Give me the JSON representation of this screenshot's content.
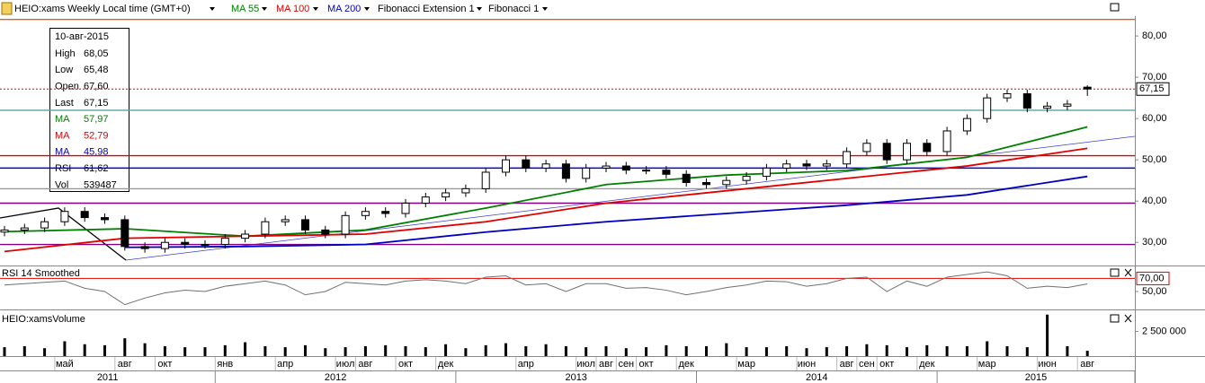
{
  "toolbar": {
    "symbol": "HEIO:xams Weekly Local time (GMT+0)",
    "tools": [
      "Fibonacci Extension 1",
      "Fibonacci 1"
    ]
  },
  "info_box": {
    "date": "10-авг-2015",
    "rows": [
      {
        "label": "High",
        "value": "68,05",
        "color": "#000000"
      },
      {
        "label": "Low",
        "value": "65,48",
        "color": "#000000"
      },
      {
        "label": "Open",
        "value": "67,60",
        "color": "#000000"
      },
      {
        "label": "Last",
        "value": "67,15",
        "color": "#000000"
      },
      {
        "label": "MA",
        "value": "57,97",
        "color": "#008000"
      },
      {
        "label": "MA",
        "value": "52,79",
        "color": "#e00000"
      },
      {
        "label": "MA",
        "value": "45,98",
        "color": "#0000c0"
      },
      {
        "label": "RSI",
        "value": "61,62",
        "color": "#000000"
      },
      {
        "label": "Vol",
        "value": "539487",
        "color": "#000000"
      }
    ]
  },
  "chart_data": [
    {
      "type": "candlestick",
      "x": [
        "2011-02",
        "2011-03",
        "2011-04",
        "2011-05",
        "2011-06",
        "2011-07",
        "2011-08",
        "2011-09",
        "2011-10",
        "2011-11",
        "2011-12",
        "2012-01",
        "2012-02",
        "2012-03",
        "2012-04",
        "2012-05",
        "2012-06",
        "2012-07",
        "2012-08",
        "2012-09",
        "2012-10",
        "2012-11",
        "2012-12",
        "2013-01",
        "2013-02",
        "2013-03",
        "2013-04",
        "2013-05",
        "2013-06",
        "2013-07",
        "2013-08",
        "2013-09",
        "2013-10",
        "2013-11",
        "2013-12",
        "2014-01",
        "2014-02",
        "2014-03",
        "2014-04",
        "2014-05",
        "2014-06",
        "2014-07",
        "2014-08",
        "2014-09",
        "2014-10",
        "2014-11",
        "2014-12",
        "2015-01",
        "2015-02",
        "2015-03",
        "2015-04",
        "2015-05",
        "2015-06",
        "2015-07",
        "2015-08"
      ],
      "open": [
        32.5,
        33,
        33.5,
        35,
        37.5,
        36,
        35.5,
        29,
        28.5,
        30,
        29.5,
        29.5,
        31,
        32,
        35,
        35.5,
        33,
        32,
        36.5,
        37.5,
        37,
        39.5,
        41,
        42,
        43,
        47,
        50,
        48,
        49,
        45.5,
        48,
        48.5,
        47.5,
        47.5,
        46.5,
        44.5,
        44,
        45,
        46,
        48,
        49,
        48.5,
        49,
        52,
        54,
        50,
        54,
        52,
        57,
        60,
        65,
        66,
        62.5,
        63,
        67.6
      ],
      "high": [
        34,
        34.5,
        36,
        38.5,
        38.5,
        37,
        36.5,
        30,
        31,
        31,
        30.5,
        32,
        33,
        36,
        36.5,
        36.5,
        34,
        37.5,
        38.5,
        38.5,
        40.5,
        42,
        43,
        44,
        48,
        51,
        51,
        50,
        50,
        49,
        49.5,
        49.5,
        48.5,
        48.5,
        47.5,
        45.5,
        46,
        47,
        49,
        50,
        50,
        50,
        53,
        55,
        55,
        55,
        55,
        58,
        61,
        66,
        67,
        67,
        64,
        64.5,
        68.05
      ],
      "low": [
        31.5,
        32,
        32.5,
        34,
        35,
        34.5,
        28,
        27.5,
        27.5,
        28.5,
        28.5,
        28.5,
        30,
        31,
        34,
        32,
        31,
        31,
        35.5,
        36,
        36,
        38.5,
        40,
        41,
        42,
        46,
        47,
        47,
        44.5,
        44.5,
        47,
        46.5,
        46.5,
        45.5,
        43.5,
        43,
        43,
        44,
        45,
        47,
        47.5,
        47.5,
        48,
        51,
        49,
        49,
        51,
        51,
        56,
        59,
        64,
        61.5,
        61.5,
        62,
        65.48
      ],
      "close": [
        33,
        33.5,
        35,
        37.5,
        36,
        35.5,
        29,
        28.5,
        30,
        29.5,
        29.5,
        31,
        32,
        35,
        35.5,
        33,
        32,
        36.5,
        37.5,
        37,
        39.5,
        41,
        42,
        43,
        47,
        50,
        48,
        49,
        45.5,
        48,
        48.5,
        47.5,
        47.5,
        46.5,
        44.5,
        44,
        45,
        46,
        48,
        49,
        48.5,
        49,
        52,
        54,
        50,
        54,
        52,
        57,
        60,
        65,
        66,
        62.5,
        63,
        63.5,
        67.15
      ],
      "series": [
        {
          "name": "MA 55",
          "color": "#008000",
          "x": [
            "2011-02",
            "2011-08",
            "2012-02",
            "2012-08",
            "2013-02",
            "2013-08",
            "2014-02",
            "2014-08",
            "2015-02",
            "2015-08"
          ],
          "values": [
            32.6,
            33.3,
            31.5,
            33,
            38.3,
            44,
            46.3,
            47.4,
            50.6,
            57.97
          ]
        },
        {
          "name": "MA 100",
          "color": "#e00000",
          "x": [
            "2011-02",
            "2011-08",
            "2012-02",
            "2012-08",
            "2013-02",
            "2013-08",
            "2014-02",
            "2014-08",
            "2015-02",
            "2015-08"
          ],
          "values": [
            27.8,
            31,
            31.5,
            32,
            35,
            39.5,
            42.5,
            45.5,
            48.5,
            52.79
          ]
        },
        {
          "name": "MA 200",
          "color": "#0000c0",
          "x": [
            "2011-02",
            "2011-08",
            "2012-02",
            "2012-08",
            "2013-02",
            "2013-08",
            "2014-02",
            "2014-08",
            "2015-02",
            "2015-08"
          ],
          "values": [
            null,
            28.8,
            29,
            29.5,
            32.5,
            35,
            37,
            39,
            41.5,
            45.98
          ]
        }
      ],
      "levels": [
        {
          "value": 84,
          "color": "#e06020"
        },
        {
          "value": 62,
          "color": "#5f9ea0"
        },
        {
          "value": 51,
          "color": "#e00000"
        },
        {
          "value": 48,
          "color": "#0000e0"
        },
        {
          "value": 43,
          "color": "#999999"
        },
        {
          "value": 39.5,
          "color": "#800080"
        },
        {
          "value": 29.5,
          "color": "#800080"
        }
      ],
      "last": {
        "value": 67.15,
        "label": "67,15"
      },
      "ylim": [
        24.4,
        84.8
      ],
      "yticks": [
        {
          "value": 30,
          "label": "30,00"
        },
        {
          "value": 40,
          "label": "40,00"
        },
        {
          "value": 50,
          "label": "50,00"
        },
        {
          "value": 60,
          "label": "60,00"
        },
        {
          "value": 70,
          "label": "70,00"
        },
        {
          "value": 80,
          "label": "80,00"
        }
      ]
    },
    {
      "type": "line",
      "title": "RSI 14 Smoothed",
      "color": "#707070",
      "x": [
        "2011-02",
        "2011-03",
        "2011-04",
        "2011-05",
        "2011-06",
        "2011-07",
        "2011-08",
        "2011-09",
        "2011-10",
        "2011-11",
        "2011-12",
        "2012-01",
        "2012-02",
        "2012-03",
        "2012-04",
        "2012-05",
        "2012-06",
        "2012-07",
        "2012-08",
        "2012-09",
        "2012-10",
        "2012-11",
        "2012-12",
        "2013-01",
        "2013-02",
        "2013-03",
        "2013-04",
        "2013-05",
        "2013-06",
        "2013-07",
        "2013-08",
        "2013-09",
        "2013-10",
        "2013-11",
        "2013-12",
        "2014-01",
        "2014-02",
        "2014-03",
        "2014-04",
        "2014-05",
        "2014-06",
        "2014-07",
        "2014-08",
        "2014-09",
        "2014-10",
        "2014-11",
        "2014-12",
        "2015-01",
        "2015-02",
        "2015-03",
        "2015-04",
        "2015-05",
        "2015-06",
        "2015-07",
        "2015-08"
      ],
      "values": [
        60,
        62,
        64,
        66,
        55,
        50,
        30,
        40,
        48,
        52,
        50,
        58,
        62,
        66,
        60,
        45,
        50,
        64,
        62,
        60,
        66,
        68,
        66,
        62,
        72,
        74,
        60,
        62,
        50,
        62,
        62,
        55,
        56,
        52,
        45,
        50,
        56,
        60,
        66,
        65,
        58,
        62,
        70,
        72,
        50,
        66,
        58,
        72,
        76,
        80,
        74,
        55,
        58,
        56,
        61.62
      ],
      "level": {
        "value": 70,
        "color": "#e00000",
        "label": "70,00"
      },
      "ylim": [
        24,
        87
      ],
      "yticks": [
        {
          "value": 50,
          "label": "50,00"
        }
      ]
    },
    {
      "type": "bar",
      "title": "HEIO:xamsVolume",
      "color": "#000000",
      "x": [
        "2011-02",
        "2011-03",
        "2011-04",
        "2011-05",
        "2011-06",
        "2011-07",
        "2011-08",
        "2011-09",
        "2011-10",
        "2011-11",
        "2011-12",
        "2012-01",
        "2012-02",
        "2012-03",
        "2012-04",
        "2012-05",
        "2012-06",
        "2012-07",
        "2012-08",
        "2012-09",
        "2012-10",
        "2012-11",
        "2012-12",
        "2013-01",
        "2013-02",
        "2013-03",
        "2013-04",
        "2013-05",
        "2013-06",
        "2013-07",
        "2013-08",
        "2013-09",
        "2013-10",
        "2013-11",
        "2013-12",
        "2014-01",
        "2014-02",
        "2014-03",
        "2014-04",
        "2014-05",
        "2014-06",
        "2014-07",
        "2014-08",
        "2014-09",
        "2014-10",
        "2014-11",
        "2014-12",
        "2015-01",
        "2015-02",
        "2015-03",
        "2015-04",
        "2015-05",
        "2015-06",
        "2015-07",
        "2015-08"
      ],
      "values": [
        900000,
        1000000,
        800000,
        1500000,
        1200000,
        1100000,
        1800000,
        1300000,
        1000000,
        900000,
        900000,
        1100000,
        1400000,
        1000000,
        900000,
        1100000,
        800000,
        900000,
        1000000,
        1100000,
        1000000,
        900000,
        1200000,
        800000,
        1100000,
        1300000,
        1000000,
        1200000,
        1000000,
        900000,
        1000000,
        800000,
        900000,
        1100000,
        1000000,
        1000000,
        1300000,
        900000,
        900000,
        1000000,
        800000,
        900000,
        1000000,
        1200000,
        1100000,
        900000,
        1100000,
        1000000,
        1000000,
        1500000,
        1000000,
        900000,
        4200000,
        1000000,
        539487
      ],
      "ylim": [
        0,
        4540000
      ],
      "yticks": [
        {
          "value": 2500000,
          "label": "2 500 000"
        }
      ]
    }
  ],
  "time_axis": {
    "months": [
      {
        "date": "2011-05",
        "label": "май"
      },
      {
        "date": "2011-08",
        "label": "авг"
      },
      {
        "date": "2011-10",
        "label": "окт"
      },
      {
        "date": "2012-01",
        "label": "янв"
      },
      {
        "date": "2012-04",
        "label": "апр"
      },
      {
        "date": "2012-07",
        "label": "июл"
      },
      {
        "date": "2012-08",
        "label": "авг"
      },
      {
        "date": "2012-10",
        "label": "окт"
      },
      {
        "date": "2012-12",
        "label": "дек"
      },
      {
        "date": "2013-04",
        "label": "апр"
      },
      {
        "date": "2013-07",
        "label": "июл"
      },
      {
        "date": "2013-08",
        "label": "авг"
      },
      {
        "date": "2013-09",
        "label": "сен"
      },
      {
        "date": "2013-10",
        "label": "окт"
      },
      {
        "date": "2013-12",
        "label": "дек"
      },
      {
        "date": "2014-03",
        "label": "мар"
      },
      {
        "date": "2014-06",
        "label": "июн"
      },
      {
        "date": "2014-08",
        "label": "авг"
      },
      {
        "date": "2014-09",
        "label": "сен"
      },
      {
        "date": "2014-10",
        "label": "окт"
      },
      {
        "date": "2014-12",
        "label": "дек"
      },
      {
        "date": "2015-03",
        "label": "мар"
      },
      {
        "date": "2015-06",
        "label": "июн"
      },
      {
        "date": "2015-08",
        "label": "авг"
      }
    ],
    "years": [
      "2011",
      "2012",
      "2013",
      "2014",
      "2015"
    ]
  }
}
